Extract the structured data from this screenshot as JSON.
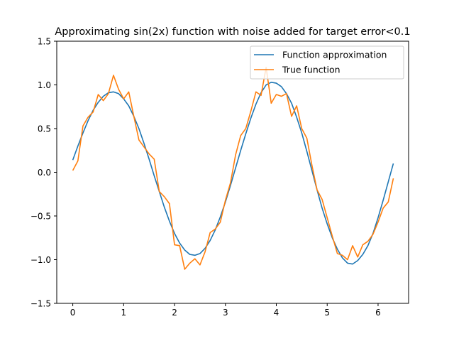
{
  "chart_data": {
    "type": "line",
    "title": "Approximating sin(2x) function with noise added for target error<0.1",
    "xlabel": "",
    "ylabel": "",
    "xlim": [
      -0.315,
      6.6
    ],
    "ylim": [
      -1.5,
      1.5
    ],
    "x_ticks": [
      0,
      1,
      2,
      3,
      4,
      5,
      6
    ],
    "x_tick_labels": [
      "0",
      "1",
      "2",
      "3",
      "4",
      "5",
      "6"
    ],
    "y_ticks": [
      -1.5,
      -1.0,
      -0.5,
      0.0,
      0.5,
      1.0,
      1.5
    ],
    "y_tick_labels": [
      "−1.5",
      "−1.0",
      "−0.5",
      "0.0",
      "0.5",
      "1.0",
      "1.5"
    ],
    "grid": false,
    "legend_position": "top-right",
    "series": [
      {
        "name": "Function approximation",
        "color": "#1f77b4",
        "x": [
          0.0,
          0.1,
          0.2,
          0.3,
          0.4,
          0.5,
          0.6,
          0.7,
          0.8,
          0.9,
          1.0,
          1.1,
          1.2,
          1.3,
          1.4,
          1.5,
          1.6,
          1.7,
          1.8,
          1.9,
          2.0,
          2.1,
          2.2,
          2.3,
          2.4,
          2.5,
          2.6,
          2.7,
          2.8,
          2.9,
          3.0,
          3.1,
          3.2,
          3.3,
          3.4,
          3.5,
          3.6,
          3.7,
          3.8,
          3.9,
          4.0,
          4.1,
          4.2,
          4.3,
          4.4,
          4.5,
          4.6,
          4.7,
          4.8,
          4.9,
          5.0,
          5.1,
          5.2,
          5.3,
          5.4,
          5.5,
          5.6,
          5.7,
          5.8,
          5.9,
          6.0,
          6.1,
          6.2,
          6.3
        ],
        "y": [
          0.14,
          0.3,
          0.45,
          0.59,
          0.71,
          0.8,
          0.87,
          0.91,
          0.92,
          0.9,
          0.84,
          0.76,
          0.64,
          0.5,
          0.33,
          0.15,
          -0.04,
          -0.22,
          -0.4,
          -0.56,
          -0.7,
          -0.81,
          -0.89,
          -0.94,
          -0.95,
          -0.93,
          -0.87,
          -0.78,
          -0.66,
          -0.51,
          -0.34,
          -0.15,
          0.05,
          0.25,
          0.44,
          0.62,
          0.78,
          0.91,
          1.0,
          1.03,
          1.02,
          0.98,
          0.9,
          0.79,
          0.63,
          0.45,
          0.24,
          0.02,
          -0.2,
          -0.41,
          -0.59,
          -0.75,
          -0.88,
          -0.98,
          -1.04,
          -1.05,
          -1.01,
          -0.94,
          -0.84,
          -0.7,
          -0.52,
          -0.32,
          -0.11,
          0.1
        ]
      },
      {
        "name": "True function",
        "color": "#ff7f0e",
        "x": [
          0.0,
          0.1,
          0.2,
          0.3,
          0.4,
          0.5,
          0.6,
          0.7,
          0.8,
          0.9,
          1.0,
          1.1,
          1.2,
          1.3,
          1.4,
          1.5,
          1.6,
          1.7,
          1.8,
          1.9,
          2.0,
          2.1,
          2.2,
          2.3,
          2.4,
          2.5,
          2.6,
          2.7,
          2.8,
          2.9,
          3.0,
          3.1,
          3.2,
          3.3,
          3.4,
          3.5,
          3.6,
          3.7,
          3.8,
          3.9,
          4.0,
          4.1,
          4.2,
          4.3,
          4.4,
          4.5,
          4.6,
          4.7,
          4.8,
          4.9,
          5.0,
          5.1,
          5.2,
          5.3,
          5.4,
          5.5,
          5.6,
          5.7,
          5.8,
          5.9,
          6.0,
          6.1,
          6.2,
          6.3
        ],
        "y": [
          0.02,
          0.13,
          0.53,
          0.63,
          0.69,
          0.89,
          0.82,
          0.9,
          1.11,
          0.95,
          0.84,
          0.92,
          0.64,
          0.37,
          0.29,
          0.21,
          0.15,
          -0.22,
          -0.28,
          -0.36,
          -0.83,
          -0.84,
          -1.11,
          -1.04,
          -0.99,
          -1.06,
          -0.91,
          -0.69,
          -0.65,
          -0.57,
          -0.32,
          -0.12,
          0.2,
          0.42,
          0.5,
          0.7,
          0.92,
          0.88,
          1.2,
          0.79,
          0.89,
          0.87,
          0.9,
          0.64,
          0.76,
          0.5,
          0.39,
          0.08,
          -0.2,
          -0.31,
          -0.52,
          -0.73,
          -0.93,
          -0.95,
          -1.0,
          -0.84,
          -0.97,
          -0.83,
          -0.79,
          -0.71,
          -0.57,
          -0.41,
          -0.34,
          -0.07
        ]
      }
    ]
  }
}
